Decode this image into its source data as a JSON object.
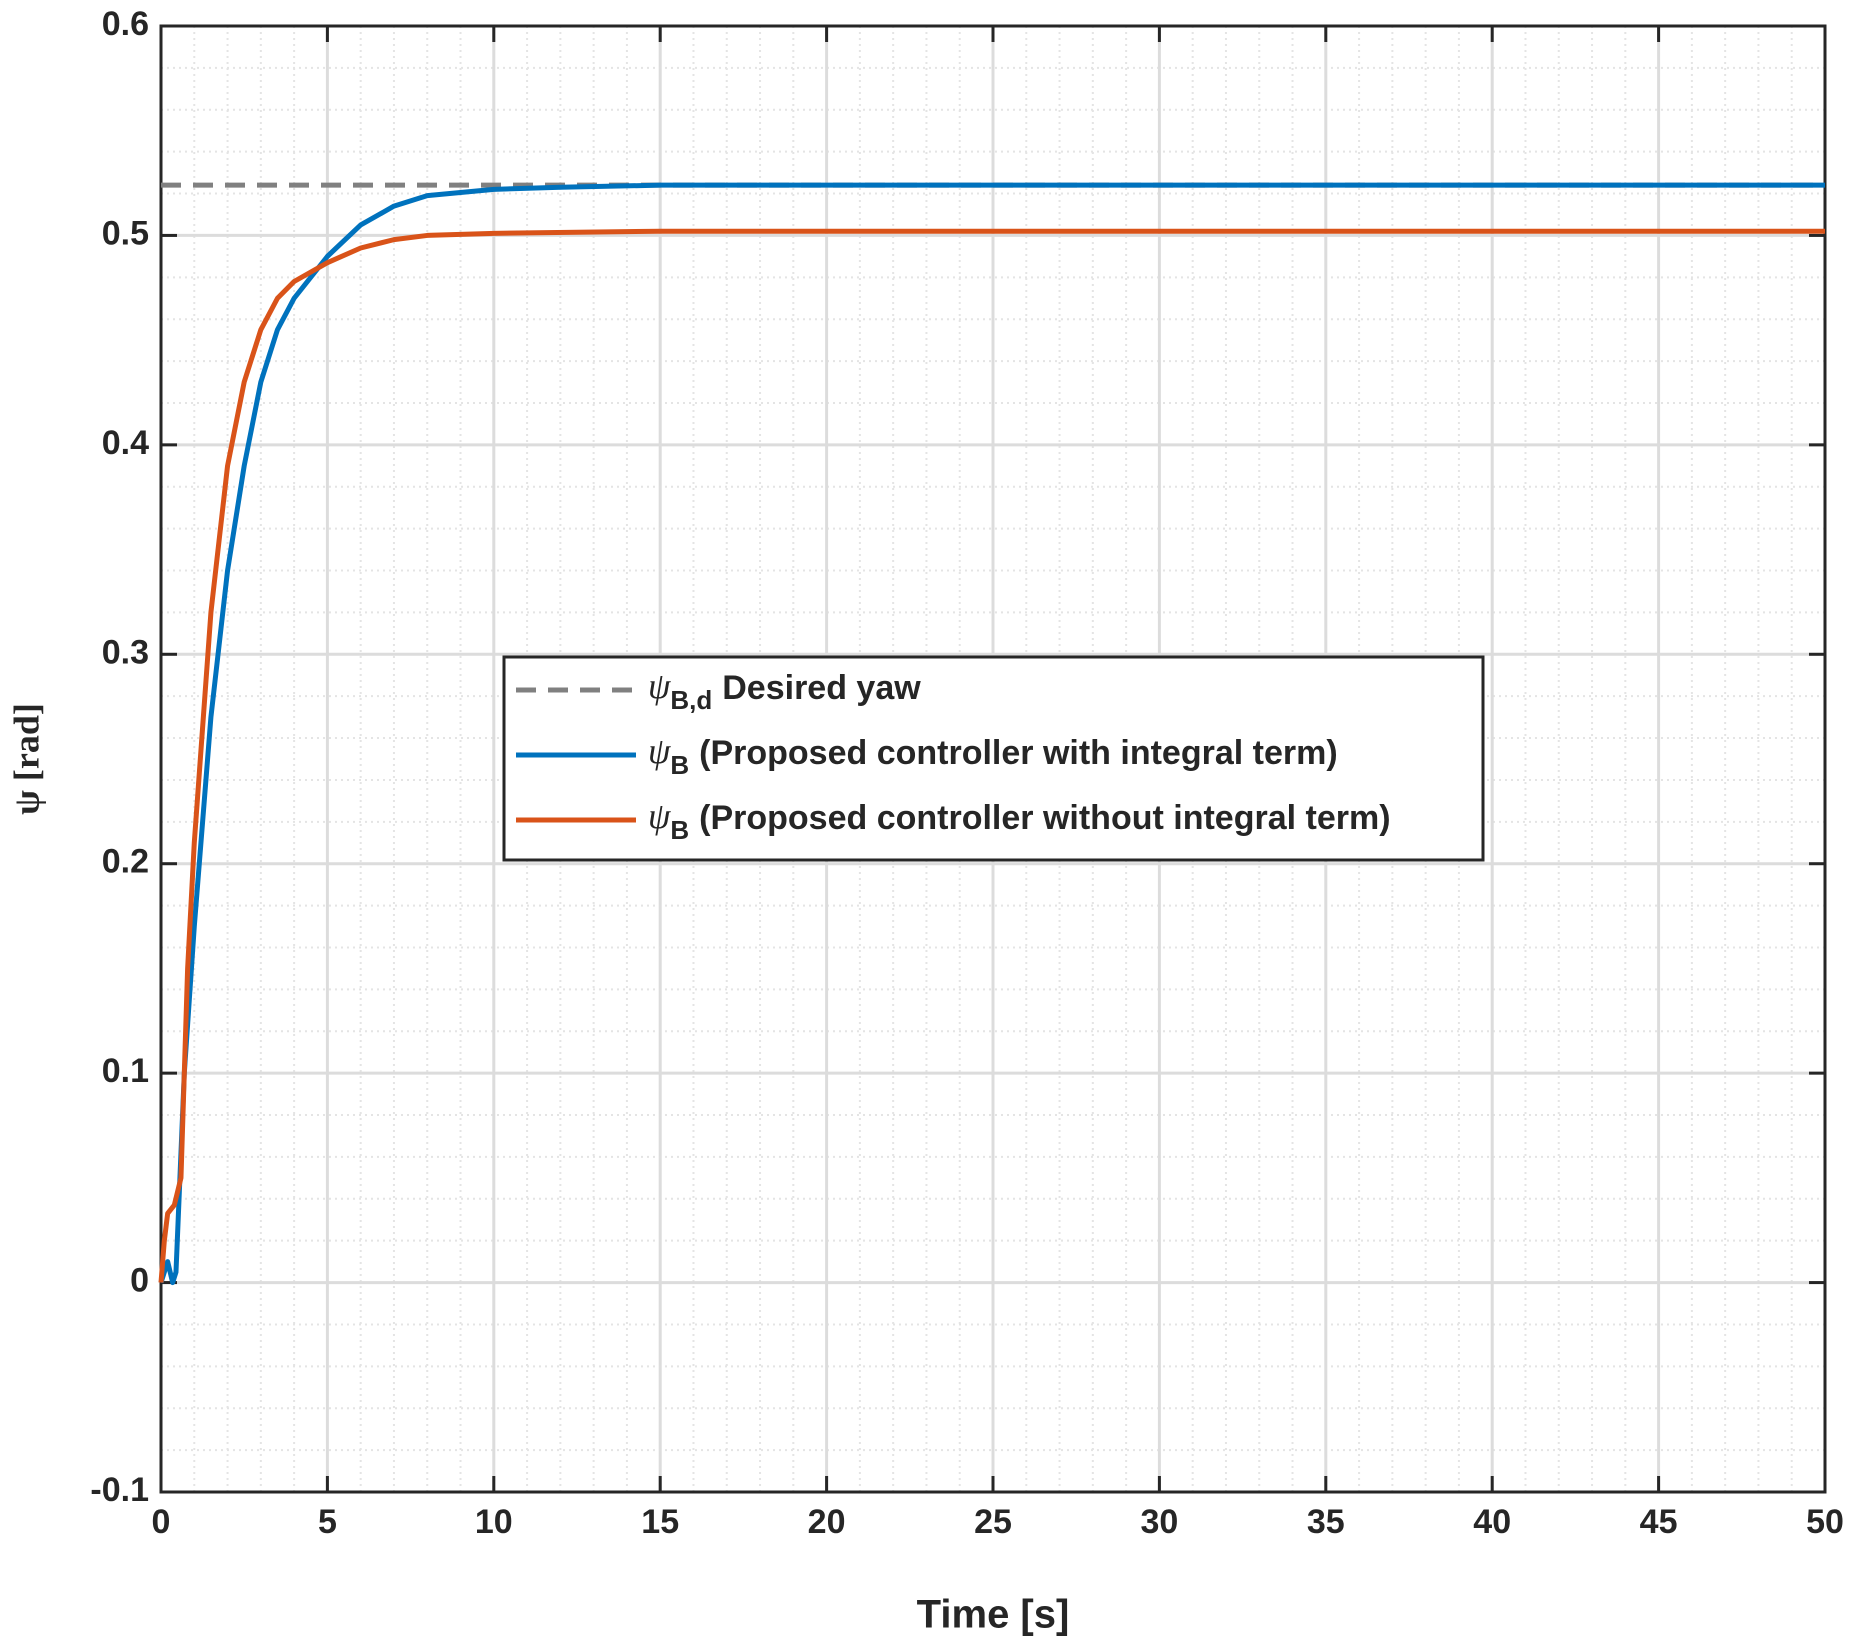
{
  "chart_data": {
    "type": "line",
    "x_label": "Time [s]",
    "y_label": "ψ [rad]",
    "xlim": [
      0,
      50
    ],
    "xticks": [
      0,
      5,
      10,
      15,
      20,
      25,
      30,
      35,
      40,
      45,
      50
    ],
    "ylim": [
      -0.1,
      0.6
    ],
    "yticks": [
      -0.1,
      0,
      0.1,
      0.2,
      0.3,
      0.4,
      0.5,
      0.6
    ],
    "grid": true,
    "minor_grid": true,
    "legend": "center",
    "series": [
      {
        "symbol": "ψ",
        "subscript": "B,d",
        "name": "Desired yaw",
        "color": "#808080",
        "dashed": true,
        "x": [
          0,
          50
        ],
        "values": [
          0.524,
          0.524
        ]
      },
      {
        "symbol": "ψ",
        "subscript": "B",
        "name": "(Proposed controller with integral term)",
        "color": "#0072BD",
        "dashed": false,
        "x": [
          0,
          0.2,
          0.35,
          0.45,
          0.7,
          1,
          1.5,
          2,
          2.5,
          3,
          3.5,
          4,
          5,
          6,
          7,
          8,
          10,
          12,
          15,
          20,
          50
        ],
        "values": [
          0,
          0.01,
          0,
          0.005,
          0.1,
          0.17,
          0.27,
          0.34,
          0.39,
          0.43,
          0.455,
          0.47,
          0.49,
          0.505,
          0.514,
          0.519,
          0.522,
          0.523,
          0.524,
          0.524,
          0.524
        ]
      },
      {
        "symbol": "ψ",
        "subscript": "B",
        "name": "(Proposed controller without integral term)",
        "color": "#D95319",
        "dashed": false,
        "x": [
          0,
          0.1,
          0.2,
          0.4,
          0.6,
          0.8,
          1,
          1.5,
          2,
          2.5,
          3,
          3.5,
          4,
          5,
          6,
          7,
          8,
          10,
          15,
          50
        ],
        "values": [
          0,
          0.02,
          0.033,
          0.037,
          0.05,
          0.15,
          0.21,
          0.32,
          0.39,
          0.43,
          0.455,
          0.47,
          0.478,
          0.487,
          0.494,
          0.498,
          0.5,
          0.501,
          0.502,
          0.502
        ]
      }
    ]
  }
}
